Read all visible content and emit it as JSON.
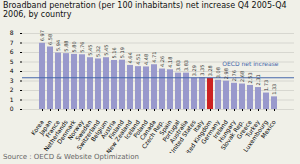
{
  "chart_data": {
    "type": "bar",
    "title": "Broadband penetration (per 100 inhabitants) net increase Q4 2005-Q4 2006, by country",
    "categories": [
      "Korea",
      "Japan",
      "France",
      "Netherlands",
      "Denmark",
      "Norway",
      "Sweden",
      "Switzerland",
      "Belgium",
      "Austria",
      "Finland",
      "New Zealand",
      "Iceland",
      "Poland",
      "Canada",
      "Czech Rep.",
      "Spain",
      "Portugal",
      "Australia",
      "United States",
      "Italy",
      "United Kingdom",
      "Germany",
      "Ireland",
      "Hungary",
      "Slovak Rep.",
      "Greece",
      "Turkey",
      "Luxembourg",
      "Mexico"
    ],
    "values": [
      6.97,
      6.58,
      5.94,
      5.88,
      5.8,
      5.76,
      5.45,
      5.32,
      5.45,
      5.16,
      5.19,
      4.64,
      4.51,
      4.48,
      4.71,
      4.26,
      4.18,
      3.83,
      3.83,
      3.29,
      3.35,
      3.28,
      3.08,
      2.98,
      2.76,
      2.68,
      2.53,
      2.31,
      1.73,
      1.33
    ],
    "value_labels": [
      "6.97",
      "6.58",
      "5.94",
      "5.88",
      "5.80",
      "5.76",
      "5.45",
      "5.32",
      "5.45",
      "5.16",
      "5.19",
      "4.64",
      "4.51",
      "4.48",
      "4.71",
      "4.26",
      "4.18",
      "3.83",
      "3.83",
      "3.29",
      "3.35",
      "3.28",
      "3.08",
      "2.98",
      "2.76",
      "2.68",
      "2.53",
      "2.31",
      "1.73",
      "1.33"
    ],
    "data_labels": true,
    "colors": [
      "#9999cc",
      "#9999cc",
      "#9999cc",
      "#9999cc",
      "#9999cc",
      "#9999cc",
      "#9999cc",
      "#9999cc",
      "#9999cc",
      "#9999cc",
      "#9999cc",
      "#9999cc",
      "#9999cc",
      "#9999cc",
      "#9999cc",
      "#9999cc",
      "#9999cc",
      "#9999cc",
      "#9999cc",
      "#9999cc",
      "#9999cc",
      "#cc2222",
      "#9999cc",
      "#9999cc",
      "#9999cc",
      "#9999cc",
      "#9999cc",
      "#9999cc",
      "#9999cc",
      "#9999cc"
    ],
    "reference_line": {
      "value": 3.34,
      "label": "OECD net increase",
      "color": "#4466aa"
    },
    "source": "Source : OECD & Website Optimization",
    "background_color": "#f0f0e8",
    "ylim": [
      0,
      8
    ],
    "yticks": [
      0,
      1,
      2,
      3,
      4,
      5,
      6,
      7,
      8
    ],
    "grid": true
  }
}
